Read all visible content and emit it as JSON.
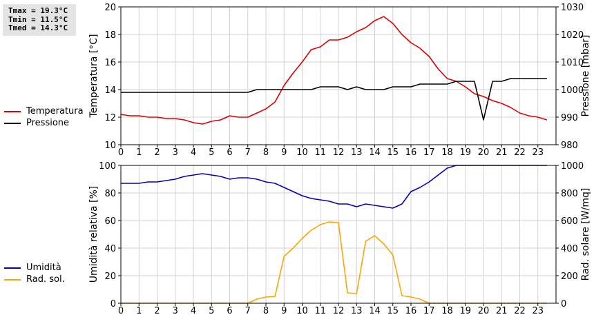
{
  "stats": {
    "tmax": "Tmax = 19.3°C",
    "tmin": "Tmin = 11.5°C",
    "tmed": "Tmed = 14.3°C"
  },
  "colors": {
    "temperature": "#dd0000",
    "pressure": "#000000",
    "humidity": "#0000bb",
    "solar": "#ffa500"
  },
  "chart_data": [
    {
      "type": "line",
      "x": [
        0,
        0.5,
        1,
        1.5,
        2,
        2.5,
        3,
        3.5,
        4,
        4.5,
        5,
        5.5,
        6,
        6.5,
        7,
        7.5,
        8,
        8.5,
        9,
        9.5,
        10,
        10.5,
        11,
        11.5,
        12,
        12.5,
        13,
        13.5,
        14,
        14.5,
        15,
        15.5,
        16,
        16.5,
        17,
        17.5,
        18,
        18.5,
        19,
        19.5,
        20,
        20.5,
        21,
        21.5,
        22,
        22.5,
        23,
        23.5
      ],
      "xlim": [
        0,
        24
      ],
      "xticks": [
        "0",
        "1",
        "2",
        "3",
        "4",
        "5",
        "6",
        "7",
        "8",
        "9",
        "10",
        "11",
        "12",
        "13",
        "14",
        "15",
        "16",
        "17",
        "18",
        "19",
        "20",
        "21",
        "22",
        "23"
      ],
      "ylabel": "Temperatura [°C]",
      "ylim": [
        10,
        20
      ],
      "yticks": [
        "10",
        "12",
        "14",
        "16",
        "18",
        "20"
      ],
      "y2label": "Pressione [mbar]",
      "y2lim": [
        980,
        1030
      ],
      "y2ticks": [
        "980",
        "990",
        "1000",
        "1010",
        "1020",
        "1030"
      ],
      "grid": true,
      "legend_position": "left",
      "series": [
        {
          "name": "Temperatura",
          "axis": "left",
          "color": "#dd0000",
          "values": [
            12.2,
            12.1,
            12.1,
            12.0,
            12.0,
            11.9,
            11.9,
            11.8,
            11.6,
            11.5,
            11.7,
            11.8,
            12.1,
            12.0,
            12.0,
            12.3,
            12.6,
            13.1,
            14.3,
            15.2,
            16.0,
            16.9,
            17.1,
            17.6,
            17.6,
            17.8,
            18.2,
            18.5,
            19.0,
            19.3,
            18.8,
            18.0,
            17.4,
            17.0,
            16.4,
            15.5,
            14.8,
            14.6,
            14.2,
            13.7,
            13.5,
            13.2,
            13.0,
            12.7,
            12.3,
            12.1,
            12.0,
            11.8
          ]
        },
        {
          "name": "Pressione",
          "axis": "right",
          "color": "#000000",
          "values": [
            999,
            999,
            999,
            999,
            999,
            999,
            999,
            999,
            999,
            999,
            999,
            999,
            999,
            999,
            999,
            1000,
            1000,
            1000,
            1000,
            1000,
            1000,
            1000,
            1001,
            1001,
            1001,
            1000,
            1001,
            1000,
            1000,
            1000,
            1001,
            1001,
            1001,
            1002,
            1002,
            1002,
            1002,
            1003,
            1003,
            1003,
            989,
            1003,
            1003,
            1004,
            1004,
            1004,
            1004,
            1004
          ]
        }
      ]
    },
    {
      "type": "line",
      "x": [
        0,
        0.5,
        1,
        1.5,
        2,
        2.5,
        3,
        3.5,
        4,
        4.5,
        5,
        5.5,
        6,
        6.5,
        7,
        7.5,
        8,
        8.5,
        9,
        9.5,
        10,
        10.5,
        11,
        11.5,
        12,
        12.5,
        13,
        13.5,
        14,
        14.5,
        15,
        15.5,
        16,
        16.5,
        17,
        17.5,
        18,
        18.5,
        19,
        19.5,
        20,
        20.5,
        21,
        21.5,
        22,
        22.5,
        23,
        23.5
      ],
      "xlim": [
        0,
        24
      ],
      "xticks": [
        "0",
        "1",
        "2",
        "3",
        "4",
        "5",
        "6",
        "7",
        "8",
        "9",
        "10",
        "11",
        "12",
        "13",
        "14",
        "15",
        "16",
        "17",
        "18",
        "19",
        "20",
        "21",
        "22",
        "23"
      ],
      "ylabel": "Umidità relativa [%]",
      "ylim": [
        0,
        100
      ],
      "yticks": [
        "0",
        "20",
        "40",
        "60",
        "80",
        "100"
      ],
      "y2label": "Rad. solare [W/mq]",
      "y2lim": [
        0,
        1000
      ],
      "y2ticks": [
        "0",
        "200",
        "400",
        "600",
        "800",
        "1000"
      ],
      "grid": true,
      "legend_position": "left",
      "series": [
        {
          "name": "Umidità",
          "axis": "left",
          "color": "#0000bb",
          "values": [
            87,
            87,
            87,
            88,
            88,
            89,
            90,
            92,
            93,
            94,
            93,
            92,
            90,
            91,
            91,
            90,
            88,
            87,
            84,
            81,
            78,
            76,
            75,
            74,
            72,
            72,
            70,
            72,
            71,
            70,
            69,
            72,
            81,
            84,
            88,
            93,
            98,
            100,
            100,
            100,
            100,
            100,
            100,
            100,
            100,
            100,
            100,
            100
          ]
        },
        {
          "name": "Rad. sol.",
          "axis": "right",
          "color": "#ffa500",
          "values": [
            0,
            0,
            0,
            0,
            0,
            0,
            0,
            0,
            0,
            0,
            0,
            0,
            0,
            0,
            0,
            30,
            45,
            50,
            340,
            400,
            470,
            530,
            570,
            590,
            585,
            75,
            70,
            450,
            490,
            430,
            350,
            55,
            45,
            30,
            0,
            0,
            0,
            0,
            0,
            0,
            0,
            0,
            0,
            0,
            0,
            0,
            0,
            0
          ]
        }
      ]
    }
  ]
}
